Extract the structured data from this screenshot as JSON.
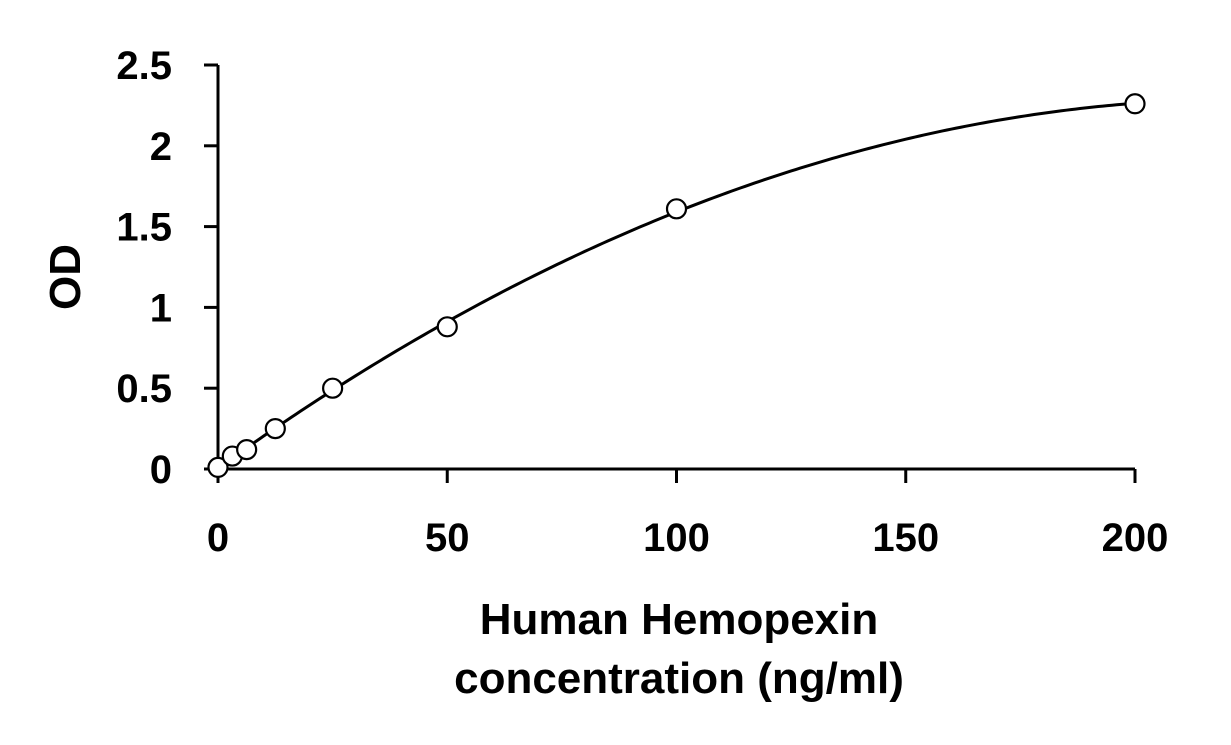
{
  "chart_data": {
    "type": "scatter",
    "xlabel_lines": [
      "Human Hemopexin",
      "concentration (ng/ml)"
    ],
    "ylabel": "OD",
    "xlim": [
      0,
      200
    ],
    "ylim": [
      0,
      2.5
    ],
    "x_ticks": [
      0,
      50,
      100,
      150,
      200
    ],
    "x_tick_labels": [
      "0",
      "50",
      "100",
      "150",
      "200"
    ],
    "y_ticks": [
      0,
      0.5,
      1,
      1.5,
      2,
      2.5
    ],
    "y_tick_labels": [
      "0",
      "0.5",
      "1",
      "1.5",
      "2",
      "2.5"
    ],
    "grid": false,
    "legend": "none",
    "series": [
      {
        "marker": "open-circle",
        "x": [
          0,
          3.125,
          6.25,
          12.5,
          25,
          50,
          100,
          200
        ],
        "y": [
          0.01,
          0.08,
          0.12,
          0.25,
          0.5,
          0.88,
          1.61,
          2.26
        ]
      }
    ],
    "fit_curve": {
      "style": "smooth-line",
      "color": "#000000"
    }
  }
}
